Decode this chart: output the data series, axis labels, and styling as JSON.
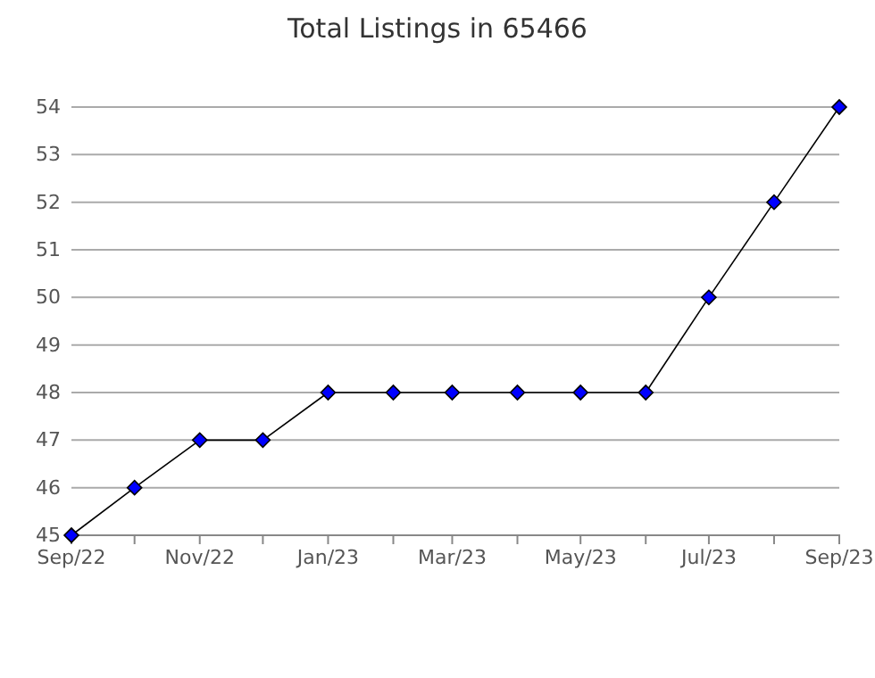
{
  "chart_data": {
    "type": "line",
    "title": "Total Listings in 65466",
    "x": [
      "2022-09",
      "2022-10",
      "2022-11",
      "2022-12",
      "2023-01",
      "2023-02",
      "2023-03",
      "2023-04",
      "2023-05",
      "2023-06",
      "2023-07",
      "2023-08",
      "2023-09"
    ],
    "series": [
      {
        "color": "#0000ff",
        "values": [
          45,
          46,
          47,
          47,
          48,
          48,
          48,
          48,
          48,
          48,
          50,
          52,
          54
        ]
      }
    ],
    "xlim": [
      "2022-09",
      "2023-09"
    ],
    "xticks": [
      {
        "value": "2022-09",
        "label": "Sep/22"
      },
      {
        "value": "2022-10",
        "label": null
      },
      {
        "value": "2022-11",
        "label": "Nov/22"
      },
      {
        "value": "2022-12",
        "label": null
      },
      {
        "value": "2023-01",
        "label": "Jan/23"
      },
      {
        "value": "2023-02",
        "label": null
      },
      {
        "value": "2023-03",
        "label": "Mar/23"
      },
      {
        "value": "2023-04",
        "label": null
      },
      {
        "value": "2023-05",
        "label": "May/23"
      },
      {
        "value": "2023-06",
        "label": null
      },
      {
        "value": "2023-07",
        "label": "Jul/23"
      },
      {
        "value": "2023-08",
        "label": null
      },
      {
        "value": "2023-09",
        "label": "Sep/23"
      }
    ],
    "ylim": [
      45,
      54
    ],
    "yticks": [
      45,
      46,
      47,
      48,
      49,
      50,
      51,
      52,
      53,
      54
    ],
    "grid": "y",
    "marker": "diamond",
    "line_style": "solid"
  }
}
